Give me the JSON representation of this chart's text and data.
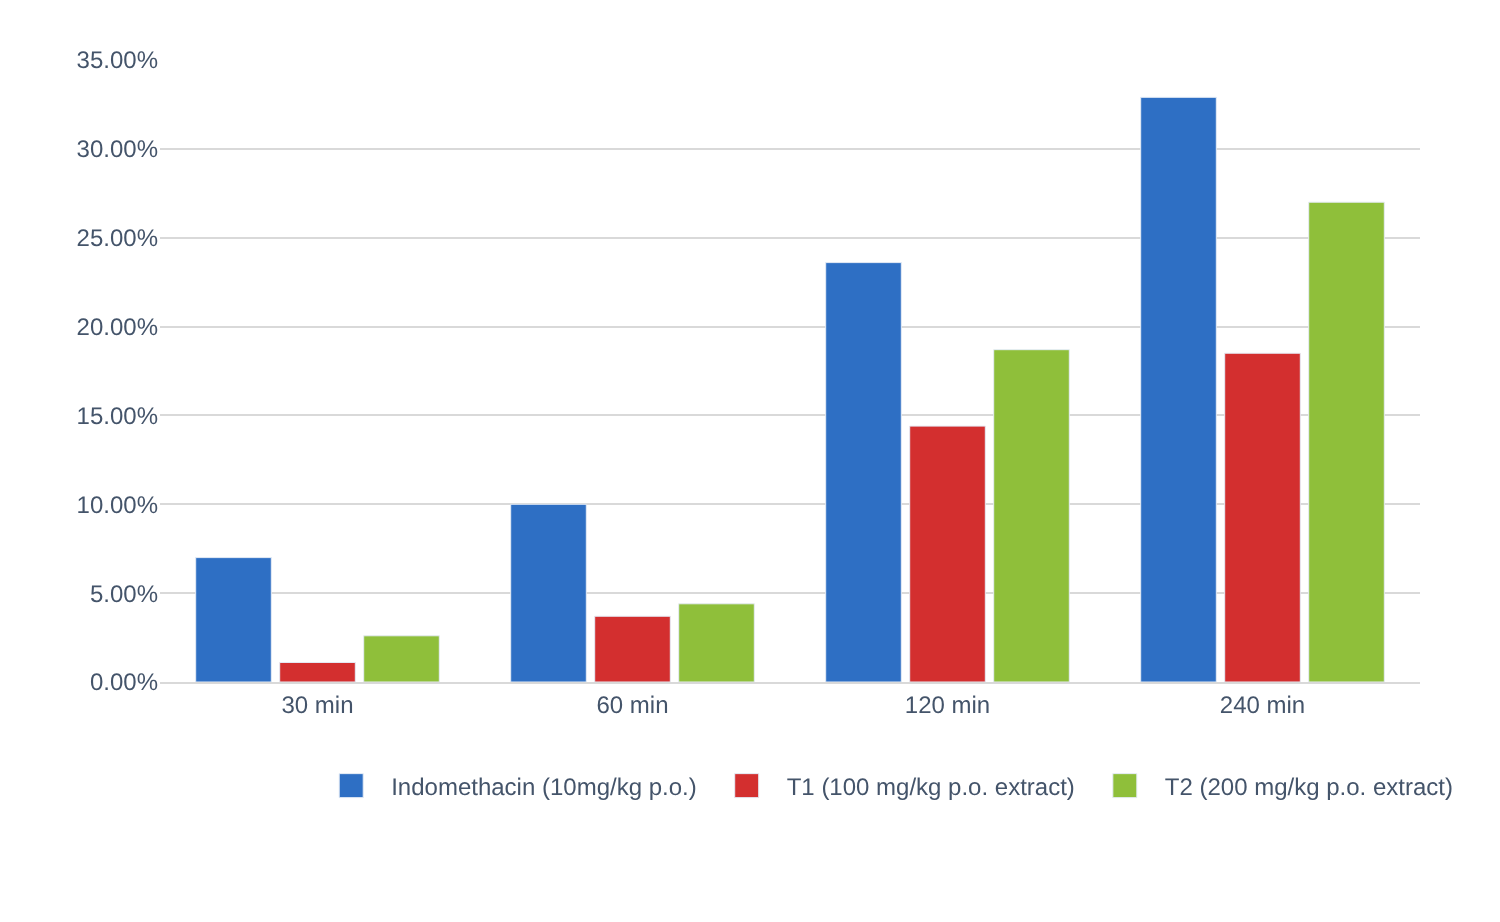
{
  "chart_data": {
    "type": "bar",
    "categories": [
      "30 min",
      "60 min",
      "120 min",
      "240 min"
    ],
    "series": [
      {
        "name": "Indomethacin (10mg/kg p.o.)",
        "color": "#2e6fc4",
        "values": [
          7.0,
          10.0,
          23.6,
          32.9
        ]
      },
      {
        "name": "T1 (100 mg/kg p.o. extract)",
        "color": "#d32f2f",
        "values": [
          1.1,
          3.7,
          14.4,
          18.5
        ]
      },
      {
        "name": "T2 (200 mg/kg p.o. extract)",
        "color": "#8fbf3a",
        "values": [
          2.6,
          4.4,
          18.7,
          27.0
        ]
      }
    ],
    "ylim": [
      0,
      35
    ],
    "yticks": [
      {
        "value": 0,
        "label": "0.00%"
      },
      {
        "value": 5,
        "label": "5.00%"
      },
      {
        "value": 10,
        "label": "10.00%"
      },
      {
        "value": 15,
        "label": "15.00%"
      },
      {
        "value": 20,
        "label": "20.00%"
      },
      {
        "value": 25,
        "label": "25.00%"
      },
      {
        "value": 30,
        "label": "30.00%"
      },
      {
        "value": 35,
        "label": "35.00%"
      }
    ],
    "grid": "y",
    "legend": "bottom"
  }
}
